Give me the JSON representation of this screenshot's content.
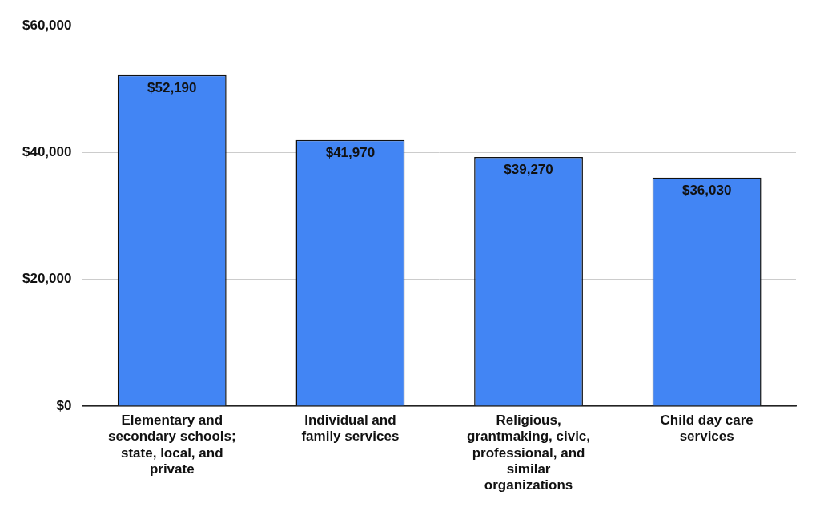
{
  "chart_data": {
    "type": "bar",
    "categories": [
      "Elementary and secondary schools; state, local, and private",
      "Individual and family services",
      "Religious, grantmaking, civic, professional, and similar organizations",
      "Child day care services"
    ],
    "values": [
      52190,
      41970,
      39270,
      36030
    ],
    "value_labels": [
      "$52,190",
      "$41,970",
      "$39,270",
      "$36,030"
    ],
    "data_labels": true,
    "color": "#4285f4",
    "ylim": [
      0,
      60000
    ],
    "yticks": [
      {
        "value": 0,
        "label": "$0"
      },
      {
        "value": 20000,
        "label": "$20,000"
      },
      {
        "value": 40000,
        "label": "$40,000"
      },
      {
        "value": 60000,
        "label": "$60,000"
      }
    ],
    "grid": true
  }
}
